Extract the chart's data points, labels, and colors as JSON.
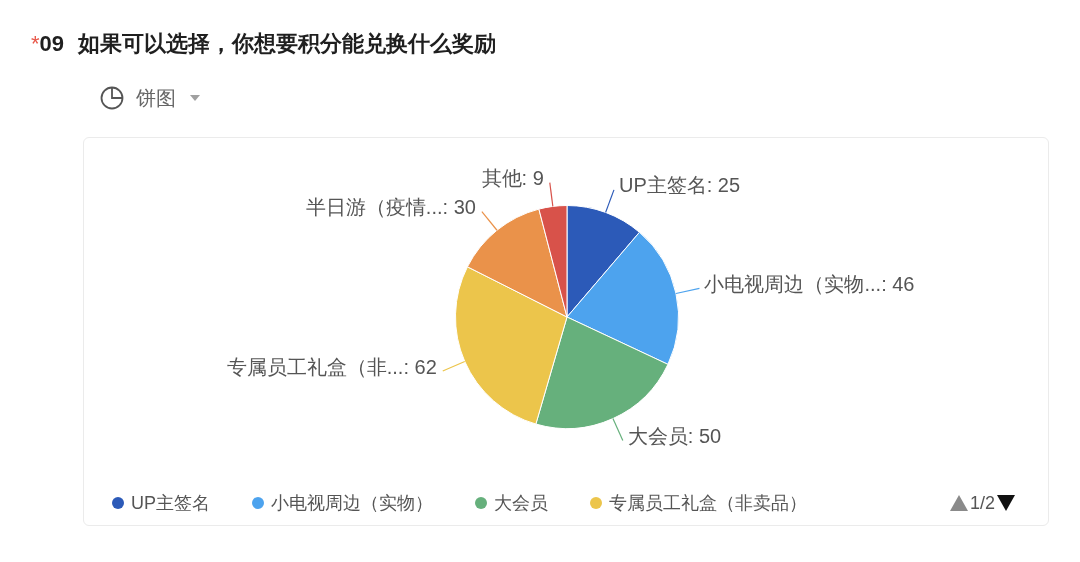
{
  "chart_data": {
    "type": "pie",
    "title": "*09 如果可以选择，你想要积分能兑换什么奖励",
    "subtitle": "饼图",
    "categories": [
      "UP主签名",
      "小电视周边（实物）",
      "大会员",
      "专属员工礼盒（非卖品）",
      null,
      null
    ],
    "values": [
      25,
      46,
      50,
      62,
      30,
      9
    ],
    "colors": [
      "#2c5ab8",
      "#4da3ee",
      "#66b07c",
      "#ecc54b",
      "#ea924a",
      "#d8524a"
    ],
    "value_labels": [
      "UP主签名: 25",
      "小电视周边（实物...: 46",
      "大会员: 50",
      "专属员工礼盒（非...: 62",
      "半日游（疫情...: 30",
      "其他: 9"
    ],
    "annotations": [
      "1/2"
    ],
    "legend": "bottom"
  }
}
